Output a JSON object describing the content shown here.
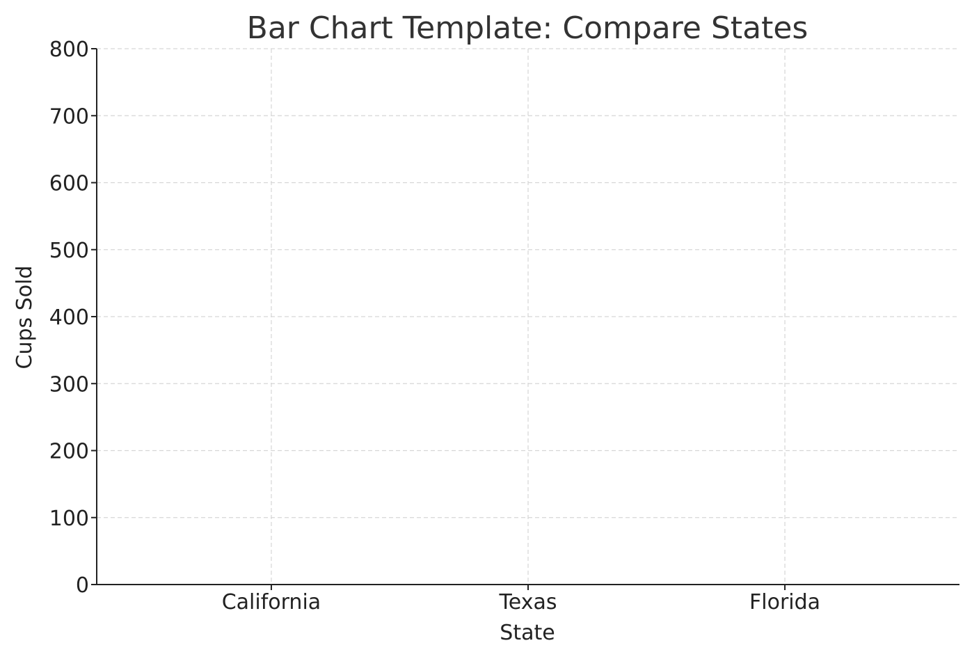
{
  "chart_data": {
    "type": "bar",
    "title": "Bar Chart Template: Compare States",
    "xlabel": "State",
    "ylabel": "Cups Sold",
    "categories": [
      "California",
      "Texas",
      "Florida"
    ],
    "values": [
      0,
      0,
      0
    ],
    "ylim": [
      0,
      800
    ],
    "yticks": [
      0,
      100,
      200,
      300,
      400,
      500,
      600,
      700,
      800
    ],
    "grid": true,
    "legend": "none",
    "colors": {
      "bar": "#4c72b0",
      "grid": "#d6d6d6",
      "axis": "#222222",
      "title": "#333333"
    }
  }
}
